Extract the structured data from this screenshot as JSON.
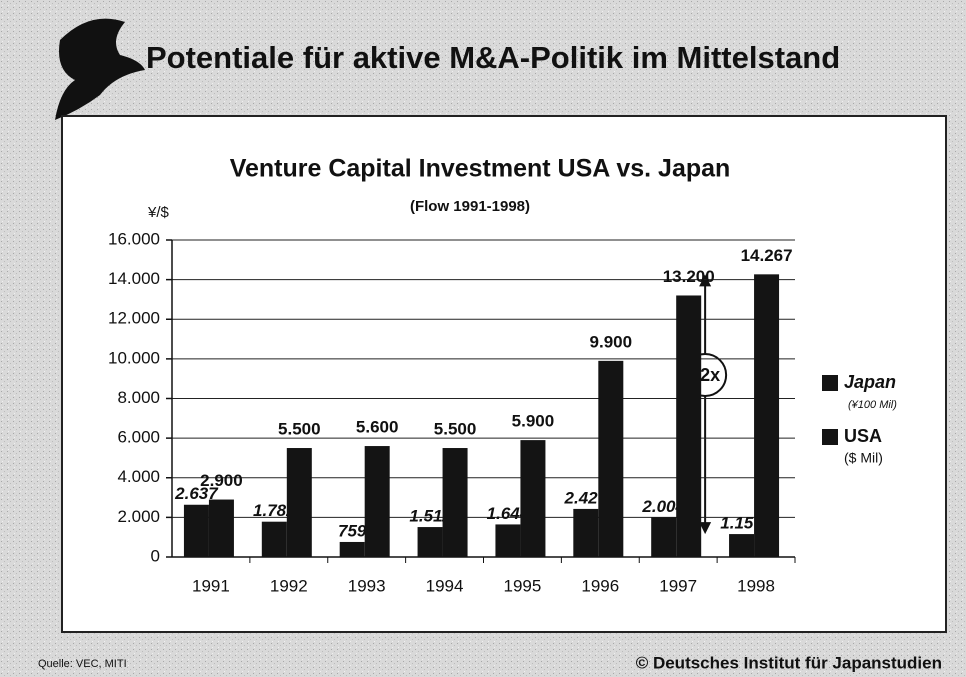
{
  "slide": {
    "title": "Potentiale für aktive M&A-Politik im Mittelstand",
    "source": "Quelle: VEC, MITI",
    "copyright": "© Deutsches Institut für Japanstudien"
  },
  "chart_data": {
    "type": "bar",
    "title": "Venture Capital Investment USA vs. Japan",
    "subtitle": "(Flow 1991-1998)",
    "y_label": "¥/$",
    "categories": [
      "1991",
      "1992",
      "1993",
      "1994",
      "1995",
      "1996",
      "1997",
      "1998"
    ],
    "series": [
      {
        "name": "Japan",
        "unit": "(¥100 Mil)",
        "color": "#141414",
        "values": [
          2637,
          1782,
          759,
          1511,
          1644,
          2427,
          2004,
          1157
        ],
        "value_labels": [
          "2.637",
          "1.782",
          "759",
          "1.511",
          "1.644",
          "2.427",
          "2.004",
          "1.157"
        ]
      },
      {
        "name": "USA",
        "unit": "($ Mil)",
        "color": "#141414",
        "values": [
          2900,
          5500,
          5600,
          5500,
          5900,
          9900,
          13200,
          14267
        ],
        "value_labels": [
          "2.900",
          "5.500",
          "5.600",
          "5.500",
          "5.900",
          "9.900",
          "13.200",
          "14.267"
        ]
      }
    ],
    "ylim": [
      0,
      16000
    ],
    "yticks": [
      0,
      {
        "value": 2000,
        "label": "2.000"
      },
      {
        "value": 4000,
        "label": "4.000"
      },
      {
        "value": 6000,
        "label": "6.000"
      },
      {
        "value": 8000,
        "label": "8.000"
      },
      {
        "value": 10000,
        "label": "10.000"
      },
      {
        "value": 12000,
        "label": "12.000"
      },
      {
        "value": 14000,
        "label": "14.000"
      },
      {
        "value": 16000,
        "label": "16.000"
      }
    ],
    "grid": true,
    "legend": "right",
    "annotation": "12x"
  }
}
